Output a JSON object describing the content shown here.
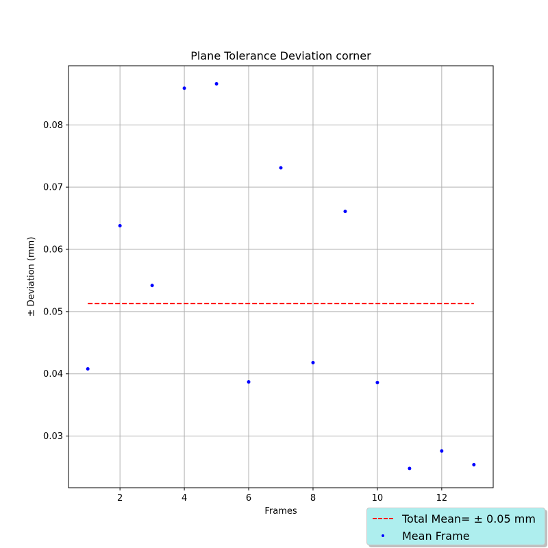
{
  "chart_data": {
    "type": "scatter",
    "title": "Plane Tolerance Deviation corner",
    "xlabel": "Frames",
    "ylabel": "± Deviation (mm)",
    "xlim": [
      0.4,
      13.6
    ],
    "ylim": [
      0.0217,
      0.0895
    ],
    "xticks": [
      2,
      4,
      6,
      8,
      10,
      12
    ],
    "yticks": [
      0.03,
      0.04,
      0.05,
      0.06,
      0.07,
      0.08
    ],
    "xtick_labels": [
      "2",
      "4",
      "6",
      "8",
      "10",
      "12"
    ],
    "ytick_labels": [
      "0.03",
      "0.04",
      "0.05",
      "0.06",
      "0.07",
      "0.08"
    ],
    "grid": true,
    "legend_position": "bottom-right, outside plot",
    "series": [
      {
        "name": "Mean Frame",
        "kind": "scatter",
        "color": "#0000ff",
        "x": [
          1,
          2,
          3,
          4,
          5,
          6,
          7,
          8,
          9,
          10,
          11,
          12,
          13
        ],
        "y": [
          0.0408,
          0.0638,
          0.0542,
          0.0859,
          0.0866,
          0.0387,
          0.0731,
          0.0418,
          0.0661,
          0.0386,
          0.0248,
          0.0276,
          0.0254
        ]
      },
      {
        "name": "Total Mean= ± 0.05 mm",
        "kind": "line",
        "style": "dashed",
        "color": "#ff0000",
        "x": [
          1,
          13
        ],
        "y": [
          0.0513,
          0.0513
        ]
      }
    ],
    "legend_background": "#aeeeee"
  }
}
